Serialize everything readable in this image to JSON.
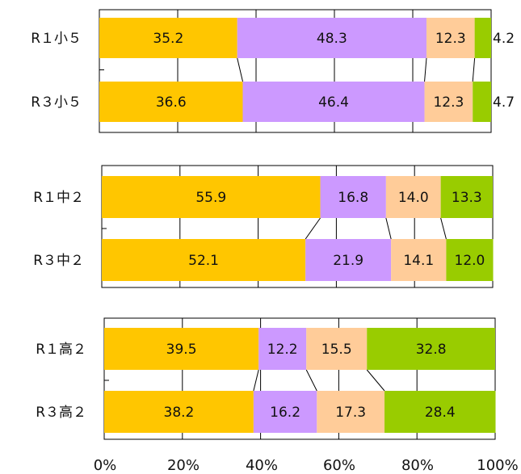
{
  "colors": {
    "seg1": "#FFC600",
    "seg2": "#CC99FF",
    "seg3": "#FFCC99",
    "seg4": "#99CC00"
  },
  "chart_data": {
    "type": "bar",
    "orientation": "horizontal",
    "stacked": "percent",
    "xlim": [
      0,
      100
    ],
    "x_ticks": [
      "0%",
      "20%",
      "40%",
      "60%",
      "80%",
      "100%"
    ],
    "panels": [
      {
        "categories": [
          "R１小５",
          "R３小５"
        ],
        "series": [
          {
            "values": [
              35.2,
              36.6
            ]
          },
          {
            "values": [
              48.3,
              46.4
            ]
          },
          {
            "values": [
              12.3,
              12.3
            ]
          },
          {
            "values": [
              4.2,
              4.7
            ]
          }
        ]
      },
      {
        "categories": [
          "R１中２",
          "R３中２"
        ],
        "series": [
          {
            "values": [
              55.9,
              52.1
            ]
          },
          {
            "values": [
              16.8,
              21.9
            ]
          },
          {
            "values": [
              14.0,
              14.1
            ]
          },
          {
            "values": [
              13.3,
              12.0
            ]
          }
        ]
      },
      {
        "categories": [
          "R１高２",
          "R３高２"
        ],
        "series": [
          {
            "values": [
              39.5,
              38.2
            ]
          },
          {
            "values": [
              12.2,
              16.2
            ]
          },
          {
            "values": [
              15.5,
              17.3
            ]
          },
          {
            "values": [
              32.8,
              28.4
            ]
          }
        ]
      }
    ]
  }
}
